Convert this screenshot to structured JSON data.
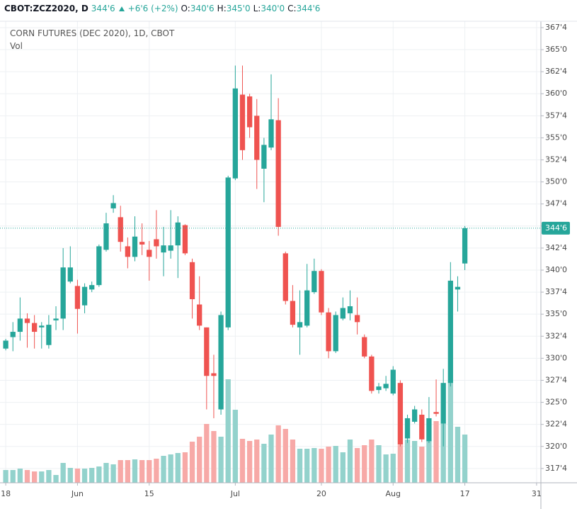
{
  "header": {
    "symbol": "CBOT:ZCZ2020, D",
    "last": "344'6",
    "change": "+6'6 (+2%)",
    "open_label": "O:",
    "open": "340'6",
    "high_label": "H:",
    "high": "345'0",
    "low_label": "L:",
    "low": "340'0",
    "close_label": "C:",
    "close": "344'6"
  },
  "chart_data": {
    "type": "candlestick",
    "title": "CORN FUTURES (DEC 2020), 1D, CBOT",
    "volume_label": "Vol",
    "up_color": "#26a69a",
    "down_color": "#ef5350",
    "volume_up_color": "#93d2cc",
    "volume_down_color": "#f7a9a7",
    "grid": true,
    "xlim": [
      -0.8,
      74.6
    ],
    "xticks": [
      {
        "value": 0,
        "label": "18"
      },
      {
        "value": 10,
        "label": "Jun"
      },
      {
        "value": 20,
        "label": "15"
      },
      {
        "value": 32,
        "label": "Jul"
      },
      {
        "value": 44,
        "label": "20"
      },
      {
        "value": 54,
        "label": "Aug"
      },
      {
        "value": 64,
        "label": "17"
      },
      {
        "value": 74,
        "label": "31"
      }
    ],
    "ylim": [
      315.88,
      368.22
    ],
    "yticks": [
      {
        "value": 317.5,
        "label": "317'4"
      },
      {
        "value": 320,
        "label": "320'0"
      },
      {
        "value": 322.5,
        "label": "322'4"
      },
      {
        "value": 325,
        "label": "325'0"
      },
      {
        "value": 327.5,
        "label": "327'4"
      },
      {
        "value": 330,
        "label": "330'0"
      },
      {
        "value": 332.5,
        "label": "332'4"
      },
      {
        "value": 335,
        "label": "335'0"
      },
      {
        "value": 337.5,
        "label": "337'4"
      },
      {
        "value": 340,
        "label": "340'0"
      },
      {
        "value": 342.5,
        "label": "342'4"
      },
      {
        "value": 345,
        "label": "345'0"
      },
      {
        "value": 347.5,
        "label": "347'4"
      },
      {
        "value": 350,
        "label": "350'0"
      },
      {
        "value": 352.5,
        "label": "352'4"
      },
      {
        "value": 355,
        "label": "355'0"
      },
      {
        "value": 357.5,
        "label": "357'4"
      },
      {
        "value": 360,
        "label": "360'0"
      },
      {
        "value": 362.5,
        "label": "362'4"
      },
      {
        "value": 365,
        "label": "365'0"
      },
      {
        "value": 367.5,
        "label": "367'4"
      }
    ],
    "last_price": {
      "value": 344.75,
      "label": "344'6"
    },
    "open": [
      331.1,
      332.4,
      333.0,
      334.5,
      334.0,
      333.5,
      331.5,
      334.3,
      334.5,
      338.7,
      338.2,
      336.0,
      337.8,
      338.3,
      342.3,
      347.0,
      346.0,
      342.7,
      341.5,
      343.2,
      342.3,
      343.5,
      342.0,
      342.2,
      342.8,
      345.1,
      340.9,
      336.1,
      333.5,
      328.3,
      324.2,
      333.5,
      350.4,
      359.9,
      359.7,
      357.5,
      351.5,
      353.9,
      357.0,
      341.9,
      336.5,
      333.5,
      333.7,
      337.5,
      339.9,
      335.2,
      330.8,
      334.5,
      335.1,
      334.9,
      332.4,
      330.2,
      326.4,
      326.6,
      326.0,
      327.2,
      320.9,
      322.8,
      323.6,
      320.6,
      323.9,
      322.6,
      327.2,
      337.8,
      340.75
    ],
    "high": [
      332.2,
      334.1,
      336.9,
      335.1,
      334.9,
      334.1,
      334.9,
      335.9,
      342.5,
      342.7,
      338.9,
      338.5,
      338.7,
      342.9,
      346.5,
      348.5,
      347.3,
      343.7,
      346.1,
      345.3,
      343.3,
      346.8,
      344.9,
      346.8,
      346.1,
      345.2,
      341.3,
      339.3,
      333.5,
      330.4,
      335.3,
      350.7,
      363.2,
      363.2,
      360.0,
      359.4,
      355.0,
      362.2,
      359.5,
      342.1,
      338.3,
      337.7,
      340.7,
      341.3,
      340.1,
      335.7,
      335.3,
      336.9,
      337.7,
      336.9,
      332.7,
      330.4,
      327.2,
      328.0,
      329.1,
      327.5,
      323.6,
      324.6,
      324.2,
      325.6,
      327.6,
      328.8,
      340.9,
      339.3,
      345
    ],
    "low": [
      330.9,
      330.8,
      332.0,
      331.2,
      331.1,
      331.1,
      331.1,
      333.2,
      333.2,
      338.5,
      332.8,
      335.1,
      337.5,
      338.1,
      342.1,
      346.5,
      342.1,
      340.2,
      341.0,
      341.7,
      338.8,
      341.3,
      339.3,
      341.3,
      339.1,
      341.7,
      334.5,
      333.2,
      324.2,
      323.2,
      323.6,
      333.2,
      350.2,
      352.5,
      355.0,
      349.2,
      347.7,
      353.6,
      343.9,
      336.1,
      333.5,
      330.4,
      333.5,
      337.3,
      334.9,
      330.0,
      330.6,
      334.3,
      334.3,
      332.7,
      330.0,
      326.0,
      326.0,
      326.3,
      325.8,
      320.0,
      320.4,
      322.6,
      320.5,
      320.4,
      323.4,
      320.0,
      326.8,
      335.3,
      340
    ],
    "close": [
      332.0,
      333.0,
      334.5,
      334.0,
      333.0,
      333.7,
      333.8,
      334.5,
      340.3,
      340.3,
      335.6,
      338.1,
      338.3,
      342.7,
      345.3,
      347.6,
      343.2,
      341.5,
      343.8,
      342.9,
      341.5,
      342.7,
      342.8,
      342.8,
      345.4,
      341.9,
      336.7,
      333.7,
      328.0,
      328.0,
      334.9,
      350.5,
      360.6,
      353.6,
      356.2,
      352.5,
      354.2,
      357.1,
      344.9,
      336.5,
      333.8,
      334.1,
      337.7,
      339.9,
      335.2,
      330.8,
      334.9,
      335.7,
      335.9,
      334.1,
      330.2,
      326.3,
      326.8,
      327.1,
      328.7,
      320.2,
      323.2,
      324.2,
      320.8,
      323.2,
      323.7,
      327.2,
      338.8,
      338.1,
      344.75
    ],
    "volume_lim": [
      0,
      651
    ],
    "volume": [
      18,
      18,
      20,
      18,
      16,
      16,
      18,
      11,
      28,
      21,
      20,
      20,
      21,
      23,
      28,
      26,
      32,
      32,
      33,
      32,
      32,
      34,
      38,
      40,
      42,
      43,
      58,
      65,
      83,
      73,
      65,
      146,
      103,
      62,
      59,
      61,
      55,
      68,
      81,
      76,
      61,
      48,
      48,
      49,
      48,
      51,
      52,
      43,
      61,
      49,
      53,
      61,
      53,
      40,
      41,
      53,
      61,
      59,
      51,
      59,
      87,
      85,
      144,
      79,
      68
    ]
  }
}
